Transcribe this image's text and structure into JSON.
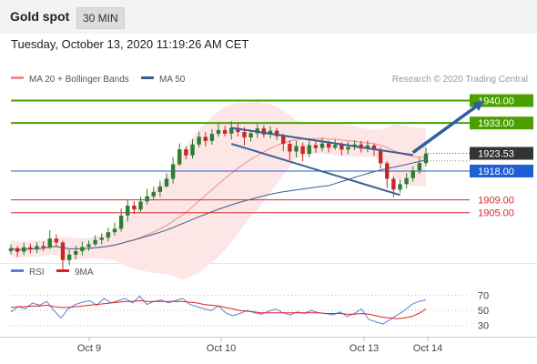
{
  "header": {
    "title": "Gold spot",
    "timeframe": "30 MIN",
    "datetime": "Tuesday, October 13, 2020 11:19:26 AM CET"
  },
  "credit": "Research © 2020 Trading Central",
  "colors": {
    "resistance": "#4aa000",
    "support": "#d9282f",
    "pivot": "#1f5fd6",
    "current": "#333333",
    "ma20": "#f08f8f",
    "bollinger_fill": "#fde3e3",
    "ma50": "#3a5f8f",
    "channel": "#3a5f8f",
    "arrow": "#2f5f9e",
    "candle_up": "#2e7d32",
    "candle_down": "#c62828",
    "rsi": "#5b7fd6",
    "rsi_ma": "#e02020"
  },
  "chart_data": [
    {
      "type": "candlestick",
      "legend": [
        {
          "name": "MA 20 + Bollinger Bands",
          "color": "#f08f8f"
        },
        {
          "name": "MA 50",
          "color": "#3a5f8f"
        }
      ],
      "x_ticks": [
        "Oct 9",
        "Oct 10",
        "Oct 13",
        "Oct 14"
      ],
      "ylim": [
        1889,
        1943
      ],
      "levels": [
        {
          "value": 1940.0,
          "label": "1940.00",
          "kind": "resistance"
        },
        {
          "value": 1933.0,
          "label": "1933.00",
          "kind": "resistance"
        },
        {
          "value": 1923.53,
          "label": "1923.53",
          "kind": "current"
        },
        {
          "value": 1918.0,
          "label": "1918.00",
          "kind": "pivot"
        },
        {
          "value": 1909.0,
          "label": "1909.00",
          "kind": "support"
        },
        {
          "value": 1905.0,
          "label": "1905.00",
          "kind": "support"
        }
      ],
      "channel": {
        "upper": [
          [
            34,
            1931.5
          ],
          [
            62,
            1923.0
          ]
        ],
        "lower": [
          [
            34,
            1926.5
          ],
          [
            60,
            1910.5
          ]
        ]
      },
      "arrow": {
        "from": [
          62,
          1923.8
        ],
        "to": [
          73,
          1940.0
        ]
      },
      "candles": [
        [
          1893.0,
          1893.9,
          1895.1,
          1892.0
        ],
        [
          1893.9,
          1892.8,
          1894.6,
          1891.2
        ],
        [
          1892.8,
          1894.2,
          1895.6,
          1891.8
        ],
        [
          1894.2,
          1893.5,
          1895.3,
          1892.3
        ],
        [
          1893.5,
          1894.6,
          1895.8,
          1892.4
        ],
        [
          1894.6,
          1894.1,
          1896.1,
          1893.0
        ],
        [
          1894.1,
          1896.9,
          1899.5,
          1893.6
        ],
        [
          1896.9,
          1895.7,
          1898.2,
          1894.5
        ],
        [
          1895.7,
          1890.2,
          1896.2,
          1887.0
        ],
        [
          1890.2,
          1891.9,
          1893.5,
          1888.6
        ],
        [
          1891.9,
          1893.0,
          1894.6,
          1890.4
        ],
        [
          1893.0,
          1894.3,
          1896.0,
          1891.7
        ],
        [
          1894.3,
          1895.1,
          1896.3,
          1893.1
        ],
        [
          1895.1,
          1896.5,
          1897.9,
          1894.6
        ],
        [
          1896.5,
          1897.2,
          1898.6,
          1895.1
        ],
        [
          1897.2,
          1898.9,
          1900.3,
          1896.0
        ],
        [
          1898.9,
          1900.0,
          1901.9,
          1897.8
        ],
        [
          1900.0,
          1904.1,
          1906.3,
          1899.1
        ],
        [
          1904.1,
          1907.2,
          1909.0,
          1902.2
        ],
        [
          1907.2,
          1906.0,
          1908.6,
          1904.6
        ],
        [
          1906.0,
          1908.5,
          1910.0,
          1905.3
        ],
        [
          1908.5,
          1910.1,
          1912.5,
          1907.5
        ],
        [
          1910.1,
          1911.5,
          1913.1,
          1908.9
        ],
        [
          1911.5,
          1913.2,
          1915.0,
          1910.0
        ],
        [
          1913.2,
          1915.6,
          1917.3,
          1912.8
        ],
        [
          1915.6,
          1920.1,
          1922.4,
          1914.1
        ],
        [
          1920.1,
          1924.8,
          1926.6,
          1919.6
        ],
        [
          1924.8,
          1922.9,
          1925.7,
          1921.7
        ],
        [
          1922.9,
          1926.3,
          1928.0,
          1921.9
        ],
        [
          1926.3,
          1928.7,
          1930.3,
          1925.4
        ],
        [
          1928.7,
          1927.4,
          1930.1,
          1925.7
        ],
        [
          1927.4,
          1929.6,
          1931.1,
          1926.2
        ],
        [
          1929.6,
          1930.8,
          1932.8,
          1928.7
        ],
        [
          1930.8,
          1929.7,
          1932.0,
          1928.8
        ],
        [
          1929.7,
          1931.5,
          1933.6,
          1927.9
        ],
        [
          1931.5,
          1930.2,
          1932.8,
          1928.8
        ],
        [
          1930.2,
          1928.5,
          1931.7,
          1926.0
        ],
        [
          1928.5,
          1929.8,
          1930.9,
          1927.2
        ],
        [
          1929.8,
          1931.3,
          1932.7,
          1928.3
        ],
        [
          1931.3,
          1929.4,
          1932.3,
          1928.5
        ],
        [
          1929.4,
          1930.6,
          1932.0,
          1928.2
        ],
        [
          1930.6,
          1928.9,
          1931.5,
          1927.7
        ],
        [
          1928.9,
          1926.5,
          1929.6,
          1924.2
        ],
        [
          1926.5,
          1924.1,
          1927.6,
          1921.4
        ],
        [
          1924.1,
          1925.8,
          1927.4,
          1922.2
        ],
        [
          1925.8,
          1923.4,
          1926.9,
          1921.0
        ],
        [
          1923.4,
          1926.1,
          1928.1,
          1922.4
        ],
        [
          1926.1,
          1925.2,
          1927.4,
          1923.7
        ],
        [
          1925.2,
          1926.6,
          1928.4,
          1924.1
        ],
        [
          1926.6,
          1925.3,
          1927.5,
          1923.8
        ],
        [
          1925.3,
          1926.2,
          1927.8,
          1924.6
        ],
        [
          1926.2,
          1924.7,
          1927.0,
          1922.9
        ],
        [
          1924.7,
          1925.5,
          1927.2,
          1923.3
        ],
        [
          1925.5,
          1926.3,
          1927.6,
          1924.5
        ],
        [
          1926.3,
          1925.0,
          1927.4,
          1923.8
        ],
        [
          1925.0,
          1926.0,
          1927.5,
          1923.9
        ],
        [
          1926.0,
          1924.6,
          1926.5,
          1922.8
        ],
        [
          1924.6,
          1920.4,
          1925.4,
          1918.7
        ],
        [
          1920.4,
          1915.6,
          1921.1,
          1912.7
        ],
        [
          1915.6,
          1912.2,
          1916.4,
          1909.9
        ],
        [
          1912.2,
          1913.9,
          1915.3,
          1911.2
        ],
        [
          1913.9,
          1915.8,
          1917.4,
          1912.6
        ],
        [
          1915.8,
          1918.2,
          1919.5,
          1914.7
        ],
        [
          1918.2,
          1920.5,
          1922.2,
          1917.1
        ],
        [
          1920.5,
          1923.5,
          1925.3,
          1919.6
        ]
      ]
    },
    {
      "type": "line",
      "legend": [
        {
          "name": "RSI",
          "color": "#5b7fd6"
        },
        {
          "name": "9MA",
          "color": "#e02020"
        }
      ],
      "y_ticks": [
        70,
        50,
        30
      ],
      "ylim": [
        20,
        78
      ],
      "series": [
        {
          "name": "RSI",
          "values": [
            48,
            55,
            52,
            60,
            57,
            62,
            50,
            40,
            52,
            58,
            61,
            63,
            57,
            66,
            60,
            63,
            66,
            60,
            69,
            58,
            62,
            64,
            60,
            63,
            66,
            58,
            55,
            52,
            50,
            56,
            47,
            43,
            46,
            50,
            47,
            45,
            49,
            52,
            47,
            44,
            48,
            46,
            50,
            47,
            46,
            44,
            48,
            42,
            46,
            52,
            38,
            35,
            32,
            38,
            44,
            50,
            58,
            62,
            64
          ]
        },
        {
          "name": "9MA",
          "values": [
            54,
            55,
            55,
            56,
            56,
            57,
            55,
            54,
            54,
            55,
            56,
            57,
            58,
            59,
            60,
            61,
            62,
            62,
            63,
            62,
            62,
            62,
            62,
            62,
            62,
            61,
            60,
            58,
            57,
            56,
            54,
            52,
            50,
            49,
            48,
            47,
            47,
            47,
            47,
            47,
            47,
            47,
            47,
            47,
            46,
            46,
            46,
            45,
            45,
            46,
            45,
            43,
            41,
            40,
            39,
            40,
            42,
            46,
            52
          ]
        }
      ]
    }
  ]
}
